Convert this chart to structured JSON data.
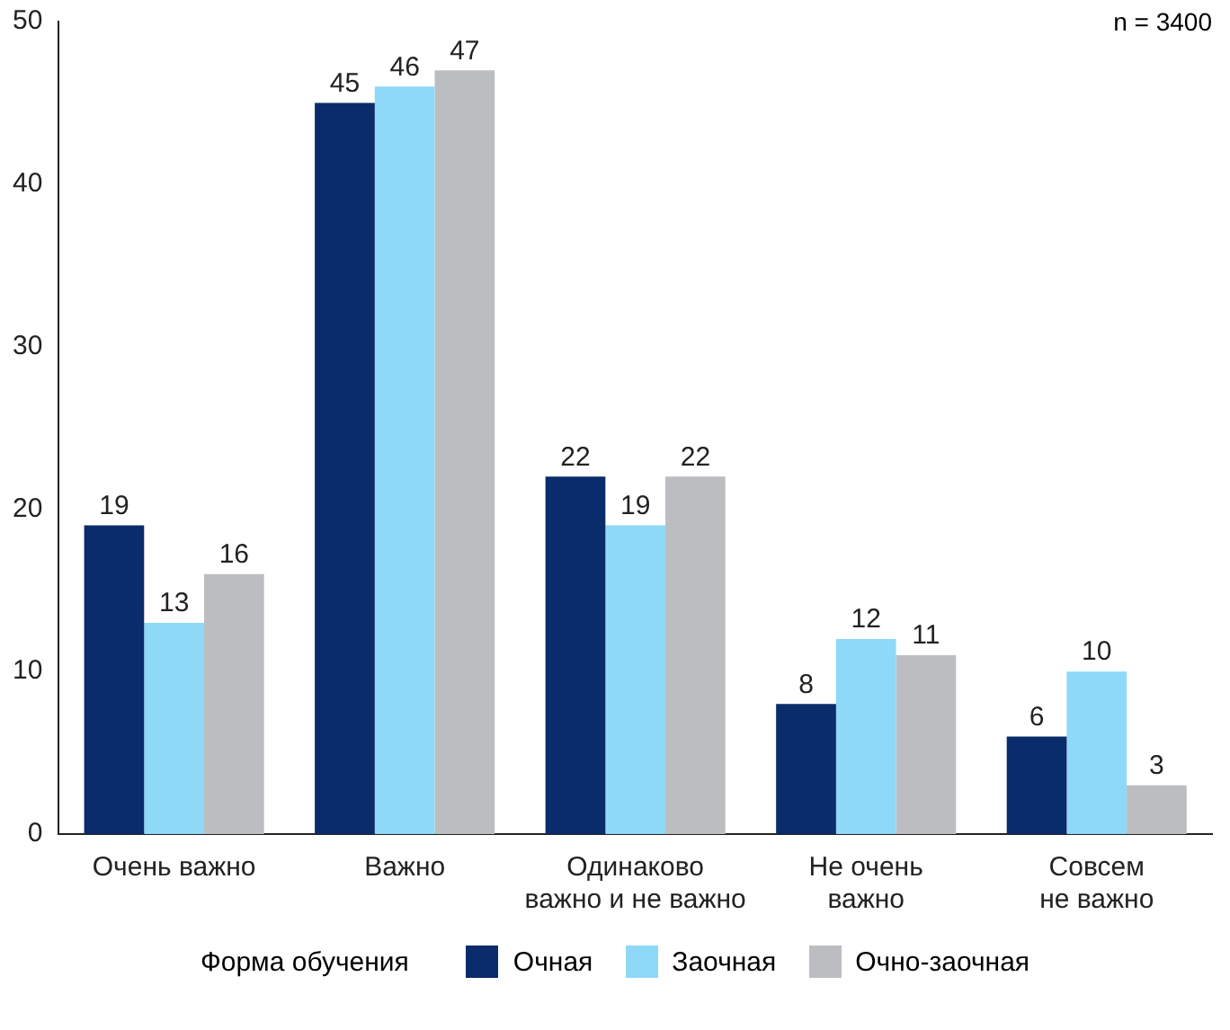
{
  "chart_data": {
    "type": "bar",
    "categories": [
      "Очень важно",
      "Важно",
      "Одинаково\nважно и не важно",
      "Не очень\nважно",
      "Совсем\nне важно"
    ],
    "series": [
      {
        "name": "Очная",
        "color": "#0b2c6b",
        "values": [
          19,
          45,
          22,
          8,
          6
        ]
      },
      {
        "name": "Заочная",
        "color": "#8ed8f8",
        "values": [
          13,
          46,
          19,
          12,
          10
        ]
      },
      {
        "name": "Очно-заочная",
        "color": "#bcbdc0",
        "values": [
          16,
          47,
          22,
          11,
          3
        ]
      }
    ],
    "ylim": [
      0,
      50
    ],
    "yticks": [
      0,
      10,
      20,
      30,
      40,
      50
    ],
    "grid": false,
    "legend": "bottom",
    "legend_title": "Форма обучения",
    "data_labels": true,
    "annotations": [
      "n = 3400"
    ]
  }
}
